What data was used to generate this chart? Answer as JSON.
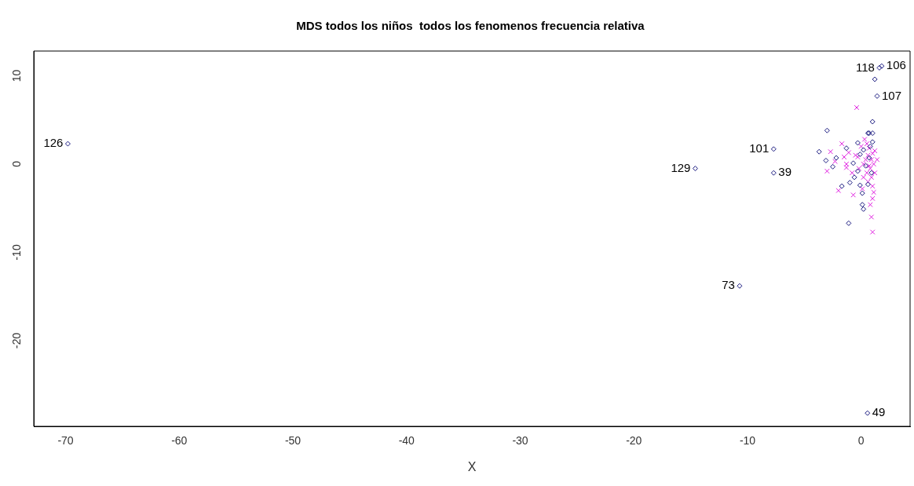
{
  "chart_data": {
    "type": "scatter",
    "title": "MDS todos los niños  todos los fenomenos frecuencia relativa",
    "xlabel": "X",
    "xlim": [
      -72.8,
      4.3
    ],
    "ylim": [
      -29.7,
      12.8
    ],
    "xticks": [
      -70,
      -60,
      -50,
      -40,
      -30,
      -20,
      -10,
      0
    ],
    "yticks": [
      -20,
      -10,
      0,
      10
    ],
    "grid": false,
    "legend": false,
    "series": [
      {
        "color": "#1a1a80",
        "marker": "diamond",
        "x": [
          -69.8,
          -14.6,
          -7.7,
          -7.7,
          -10.7,
          0.55,
          1.8,
          1.6,
          1.2,
          1.4,
          1.0,
          -3.0,
          -3.7,
          -3.1,
          -2.2,
          -2.5,
          -0.3,
          -1.3,
          -0.7,
          -0.6,
          -1.0,
          -0.1,
          0.6,
          -1.7,
          0.1,
          0.1,
          0.2,
          -1.1,
          1.0,
          -0.3,
          0.6,
          0.7,
          1.0,
          0.2,
          0.7,
          0.4,
          0.9,
          -0.1,
          0.8
        ],
        "values": [
          2.3,
          -0.5,
          1.7,
          -1.0,
          -13.8,
          -28.2,
          11.1,
          10.9,
          9.6,
          7.7,
          4.8,
          3.8,
          1.4,
          0.4,
          0.7,
          -0.3,
          2.4,
          1.8,
          0.1,
          -1.5,
          -2.1,
          -2.4,
          -2.3,
          -2.5,
          -3.3,
          -4.6,
          -5.1,
          -6.7,
          2.5,
          -0.8,
          3.5,
          3.5,
          3.5,
          1.6,
          0.7,
          -0.2,
          -1.0,
          1.1,
          2.0
        ]
      },
      {
        "color": "#e020e0",
        "marker": "cross",
        "x": [
          -1.7,
          -2.7,
          -2.3,
          -3.0,
          -1.3,
          -1.3,
          -2.0,
          -0.7,
          0.8,
          1.0,
          0.9,
          1.0,
          1.4,
          1.1,
          -0.4,
          0.0,
          0.3,
          0.6,
          0.9,
          1.1,
          0.8,
          0.5,
          0.2,
          0.6,
          1.0,
          0.4,
          0.7,
          1.0,
          0.2,
          -0.2,
          0.9,
          1.2,
          0.5,
          -0.5,
          -0.8,
          0.1,
          1.2,
          0.7,
          -0.3,
          -1.1,
          -1.5
        ],
        "values": [
          2.3,
          1.4,
          0.3,
          -0.8,
          0.0,
          -0.4,
          -3.0,
          -3.5,
          -4.6,
          -3.9,
          -6.0,
          -7.7,
          0.5,
          -3.2,
          6.4,
          2.0,
          2.8,
          1.0,
          0.5,
          0.0,
          -0.5,
          -1.0,
          -1.5,
          -2.0,
          -2.5,
          0.5,
          1.8,
          1.2,
          0.0,
          -0.5,
          -1.5,
          1.5,
          2.3,
          1.0,
          -1.0,
          -2.8,
          -1.0,
          -0.2,
          0.8,
          1.3,
          0.8
        ]
      }
    ],
    "annotations": [
      {
        "text": "126",
        "x": -69.8,
        "y": 2.3
      },
      {
        "text": "107",
        "x": 1.4,
        "y": 7.7
      },
      {
        "text": "129",
        "x": -14.6,
        "y": -0.5
      },
      {
        "text": "39",
        "x": -7.7,
        "y": -1.0
      },
      {
        "text": "73",
        "x": -10.7,
        "y": -13.8
      },
      {
        "text": "106",
        "x": 1.8,
        "y": 11.1
      },
      {
        "text": "101",
        "x": -7.7,
        "y": 1.7
      },
      {
        "text": "49",
        "x": 0.55,
        "y": -28.2
      },
      {
        "text": "118",
        "x": 1.6,
        "y": 10.9
      }
    ]
  }
}
